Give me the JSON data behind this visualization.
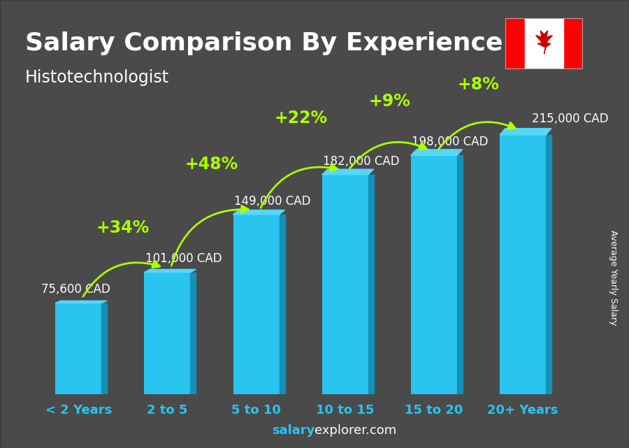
{
  "title": "Salary Comparison By Experience",
  "subtitle": "Histotechnologist",
  "categories": [
    "< 2 Years",
    "2 to 5",
    "5 to 10",
    "10 to 15",
    "15 to 20",
    "20+ Years"
  ],
  "values": [
    75600,
    101000,
    149000,
    182000,
    198000,
    215000
  ],
  "value_labels": [
    "75,600 CAD",
    "101,000 CAD",
    "149,000 CAD",
    "182,000 CAD",
    "198,000 CAD",
    "215,000 CAD"
  ],
  "pct_labels": [
    "+34%",
    "+48%",
    "+22%",
    "+9%",
    "+8%"
  ],
  "bar_color_main": "#29c4f0",
  "bar_color_right": "#1590b8",
  "bar_color_top": "#55d8f8",
  "title_color": "#ffffff",
  "subtitle_color": "#ffffff",
  "category_color": "#29c4f0",
  "value_label_color": "#ffffff",
  "pct_color": "#aaff00",
  "bg_color": "#4a4a4a",
  "overlay_color": "#00000066",
  "footer_salary_color": "#ffffff",
  "footer_explorer_color": "#ffffff",
  "ylabel": "Average Yearly Salary",
  "ylabel_color": "#ffffff",
  "title_fontsize": 26,
  "subtitle_fontsize": 17,
  "category_fontsize": 13,
  "value_label_fontsize": 12,
  "pct_fontsize": 17,
  "ylim": [
    0,
    260000
  ]
}
